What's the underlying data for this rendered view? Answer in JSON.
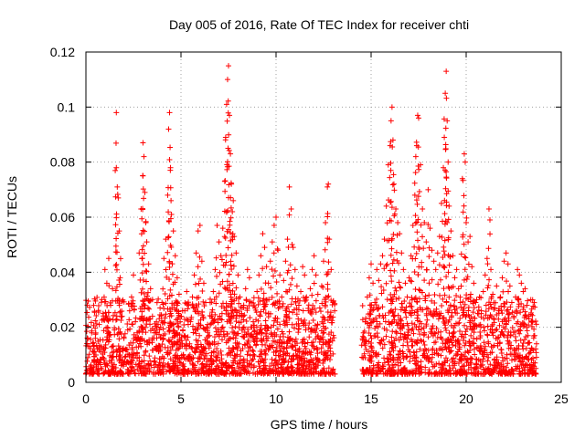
{
  "chart_data": {
    "type": "scatter",
    "title": "Day 005 of 2016, Rate Of TEC Index for receiver chti",
    "xlabel": "GPS time / hours",
    "ylabel": "ROTI / TECUs",
    "xlim": [
      0,
      25
    ],
    "ylim": [
      0,
      0.12
    ],
    "xticks": [
      0,
      5,
      10,
      15,
      20,
      25
    ],
    "yticks": [
      0,
      0.02,
      0.04,
      0.06,
      0.08,
      0.1,
      0.12
    ],
    "xtick_labels": [
      "0",
      "5",
      "10",
      "15",
      "20",
      "25"
    ],
    "ytick_labels": [
      "0",
      "0.02",
      "0.04",
      "0.06",
      "0.08",
      "0.1",
      "0.12"
    ],
    "grid": true,
    "marker": "+",
    "color": "#ff0000",
    "data_gap_hours": [
      13.1,
      14.5
    ],
    "series": [
      {
        "name": "ROTI",
        "points": [
          [
            0.1,
            0.009
          ],
          [
            0.2,
            0.013
          ],
          [
            0.3,
            0.018
          ],
          [
            0.4,
            0.011
          ],
          [
            0.5,
            0.016
          ],
          [
            0.6,
            0.008
          ],
          [
            0.7,
            0.021
          ],
          [
            0.8,
            0.013
          ],
          [
            0.9,
            0.025
          ],
          [
            1.0,
            0.041
          ],
          [
            1.1,
            0.036
          ],
          [
            1.2,
            0.045
          ],
          [
            1.3,
            0.028
          ],
          [
            1.4,
            0.034
          ],
          [
            1.5,
            0.019
          ],
          [
            1.6,
            0.098
          ],
          [
            1.6,
            0.078
          ],
          [
            1.65,
            0.071
          ],
          [
            1.7,
            0.067
          ],
          [
            1.75,
            0.055
          ],
          [
            1.8,
            0.038
          ],
          [
            1.9,
            0.024
          ],
          [
            2.0,
            0.016
          ],
          [
            2.1,
            0.012
          ],
          [
            2.2,
            0.019
          ],
          [
            2.3,
            0.026
          ],
          [
            2.4,
            0.031
          ],
          [
            2.5,
            0.039
          ],
          [
            2.6,
            0.022
          ],
          [
            2.7,
            0.018
          ],
          [
            2.8,
            0.047
          ],
          [
            2.9,
            0.063
          ],
          [
            3.0,
            0.075
          ],
          [
            3.0,
            0.087
          ],
          [
            3.05,
            0.082
          ],
          [
            3.1,
            0.069
          ],
          [
            3.15,
            0.058
          ],
          [
            3.2,
            0.051
          ],
          [
            3.3,
            0.043
          ],
          [
            3.4,
            0.034
          ],
          [
            3.5,
            0.024
          ],
          [
            3.6,
            0.018
          ],
          [
            3.7,
            0.013
          ],
          [
            3.8,
            0.021
          ],
          [
            3.9,
            0.027
          ],
          [
            4.0,
            0.029
          ],
          [
            4.1,
            0.045
          ],
          [
            4.2,
            0.052
          ],
          [
            4.3,
            0.068
          ],
          [
            4.35,
            0.092
          ],
          [
            4.4,
            0.098
          ],
          [
            4.45,
            0.078
          ],
          [
            4.5,
            0.061
          ],
          [
            4.6,
            0.055
          ],
          [
            4.7,
            0.046
          ],
          [
            4.8,
            0.038
          ],
          [
            4.9,
            0.032
          ],
          [
            5.0,
            0.024
          ],
          [
            5.1,
            0.019
          ],
          [
            5.2,
            0.026
          ],
          [
            5.3,
            0.033
          ],
          [
            5.4,
            0.028
          ],
          [
            5.5,
            0.022
          ],
          [
            5.6,
            0.031
          ],
          [
            5.7,
            0.039
          ],
          [
            5.8,
            0.047
          ],
          [
            5.9,
            0.055
          ],
          [
            6.0,
            0.057
          ],
          [
            6.1,
            0.044
          ],
          [
            6.2,
            0.036
          ],
          [
            6.3,
            0.029
          ],
          [
            6.4,
            0.021
          ],
          [
            6.5,
            0.017
          ],
          [
            6.6,
            0.024
          ],
          [
            6.7,
            0.033
          ],
          [
            6.8,
            0.041
          ],
          [
            6.9,
            0.057
          ],
          [
            7.0,
            0.051
          ],
          [
            7.1,
            0.046
          ],
          [
            7.2,
            0.056
          ],
          [
            7.3,
            0.073
          ],
          [
            7.35,
            0.089
          ],
          [
            7.4,
            0.101
          ],
          [
            7.45,
            0.11
          ],
          [
            7.5,
            0.115
          ],
          [
            7.55,
            0.097
          ],
          [
            7.6,
            0.083
          ],
          [
            7.65,
            0.072
          ],
          [
            7.7,
            0.062
          ],
          [
            7.75,
            0.066
          ],
          [
            7.8,
            0.053
          ],
          [
            7.9,
            0.047
          ],
          [
            8.0,
            0.039
          ],
          [
            8.1,
            0.031
          ],
          [
            8.2,
            0.024
          ],
          [
            8.3,
            0.028
          ],
          [
            8.4,
            0.034
          ],
          [
            8.5,
            0.041
          ],
          [
            8.6,
            0.038
          ],
          [
            8.7,
            0.029
          ],
          [
            8.8,
            0.022
          ],
          [
            8.9,
            0.027
          ],
          [
            9.0,
            0.033
          ],
          [
            9.1,
            0.039
          ],
          [
            9.2,
            0.046
          ],
          [
            9.3,
            0.054
          ],
          [
            9.4,
            0.049
          ],
          [
            9.5,
            0.042
          ],
          [
            9.6,
            0.036
          ],
          [
            9.7,
            0.044
          ],
          [
            9.8,
            0.051
          ],
          [
            9.9,
            0.057
          ],
          [
            10.0,
            0.06
          ],
          [
            10.1,
            0.048
          ],
          [
            10.2,
            0.039
          ],
          [
            10.3,
            0.031
          ],
          [
            10.4,
            0.037
          ],
          [
            10.5,
            0.044
          ],
          [
            10.6,
            0.052
          ],
          [
            10.7,
            0.071
          ],
          [
            10.8,
            0.063
          ],
          [
            10.9,
            0.049
          ],
          [
            11.0,
            0.041
          ],
          [
            11.1,
            0.035
          ],
          [
            11.2,
            0.028
          ],
          [
            11.3,
            0.033
          ],
          [
            11.4,
            0.042
          ],
          [
            11.5,
            0.039
          ],
          [
            11.6,
            0.031
          ],
          [
            11.7,
            0.026
          ],
          [
            11.8,
            0.034
          ],
          [
            11.9,
            0.041
          ],
          [
            12.0,
            0.046
          ],
          [
            12.1,
            0.039
          ],
          [
            12.2,
            0.032
          ],
          [
            12.3,
            0.027
          ],
          [
            12.4,
            0.035
          ],
          [
            12.5,
            0.044
          ],
          [
            12.6,
            0.058
          ],
          [
            12.7,
            0.071
          ],
          [
            12.75,
            0.072
          ],
          [
            12.8,
            0.052
          ],
          [
            12.9,
            0.041
          ],
          [
            13.0,
            0.029
          ],
          [
            14.6,
            0.018
          ],
          [
            14.7,
            0.022
          ],
          [
            14.8,
            0.031
          ],
          [
            14.9,
            0.038
          ],
          [
            15.0,
            0.043
          ],
          [
            15.1,
            0.036
          ],
          [
            15.2,
            0.029
          ],
          [
            15.3,
            0.041
          ],
          [
            15.4,
            0.037
          ],
          [
            15.5,
            0.043
          ],
          [
            15.6,
            0.046
          ],
          [
            15.7,
            0.052
          ],
          [
            15.8,
            0.064
          ],
          [
            15.9,
            0.079
          ],
          [
            16.0,
            0.086
          ],
          [
            16.05,
            0.095
          ],
          [
            16.1,
            0.1
          ],
          [
            16.15,
            0.088
          ],
          [
            16.2,
            0.072
          ],
          [
            16.3,
            0.063
          ],
          [
            16.4,
            0.058
          ],
          [
            16.5,
            0.054
          ],
          [
            16.6,
            0.047
          ],
          [
            16.7,
            0.041
          ],
          [
            16.8,
            0.036
          ],
          [
            16.9,
            0.031
          ],
          [
            17.0,
            0.038
          ],
          [
            17.1,
            0.046
          ],
          [
            17.2,
            0.057
          ],
          [
            17.3,
            0.068
          ],
          [
            17.35,
            0.082
          ],
          [
            17.4,
            0.086
          ],
          [
            17.45,
            0.097
          ],
          [
            17.5,
            0.096
          ],
          [
            17.6,
            0.079
          ],
          [
            17.7,
            0.063
          ],
          [
            17.8,
            0.058
          ],
          [
            17.9,
            0.051
          ],
          [
            18.0,
            0.07
          ],
          [
            18.1,
            0.056
          ],
          [
            18.2,
            0.048
          ],
          [
            18.3,
            0.044
          ],
          [
            18.4,
            0.041
          ],
          [
            18.5,
            0.047
          ],
          [
            18.6,
            0.053
          ],
          [
            18.7,
            0.065
          ],
          [
            18.8,
            0.078
          ],
          [
            18.85,
            0.089
          ],
          [
            18.9,
            0.105
          ],
          [
            18.95,
            0.113
          ],
          [
            19.0,
            0.095
          ],
          [
            19.05,
            0.08
          ],
          [
            19.1,
            0.064
          ],
          [
            19.2,
            0.055
          ],
          [
            19.3,
            0.046
          ],
          [
            19.4,
            0.038
          ],
          [
            19.5,
            0.041
          ],
          [
            19.6,
            0.034
          ],
          [
            19.7,
            0.029
          ],
          [
            19.8,
            0.074
          ],
          [
            19.9,
            0.083
          ],
          [
            19.95,
            0.08
          ],
          [
            20.0,
            0.058
          ],
          [
            20.1,
            0.051
          ],
          [
            20.2,
            0.053
          ],
          [
            20.3,
            0.042
          ],
          [
            20.4,
            0.036
          ],
          [
            20.5,
            0.029
          ],
          [
            20.6,
            0.025
          ],
          [
            20.7,
            0.031
          ],
          [
            20.8,
            0.026
          ],
          [
            20.9,
            0.033
          ],
          [
            21.0,
            0.039
          ],
          [
            21.1,
            0.045
          ],
          [
            21.2,
            0.063
          ],
          [
            21.25,
            0.059
          ],
          [
            21.3,
            0.041
          ],
          [
            21.4,
            0.032
          ],
          [
            21.5,
            0.027
          ],
          [
            21.6,
            0.035
          ],
          [
            21.7,
            0.026
          ],
          [
            21.8,
            0.031
          ],
          [
            21.9,
            0.038
          ],
          [
            22.0,
            0.044
          ],
          [
            22.1,
            0.047
          ],
          [
            22.2,
            0.043
          ],
          [
            22.3,
            0.035
          ],
          [
            22.4,
            0.029
          ],
          [
            22.5,
            0.024
          ],
          [
            22.6,
            0.031
          ],
          [
            22.7,
            0.041
          ],
          [
            22.8,
            0.039
          ],
          [
            22.9,
            0.036
          ],
          [
            23.0,
            0.033
          ],
          [
            23.1,
            0.034
          ],
          [
            23.2,
            0.028
          ],
          [
            23.3,
            0.024
          ],
          [
            23.4,
            0.03
          ],
          [
            23.5,
            0.022
          ],
          [
            23.6,
            0.017
          ],
          [
            23.7,
            0.014
          ]
        ]
      }
    ]
  }
}
